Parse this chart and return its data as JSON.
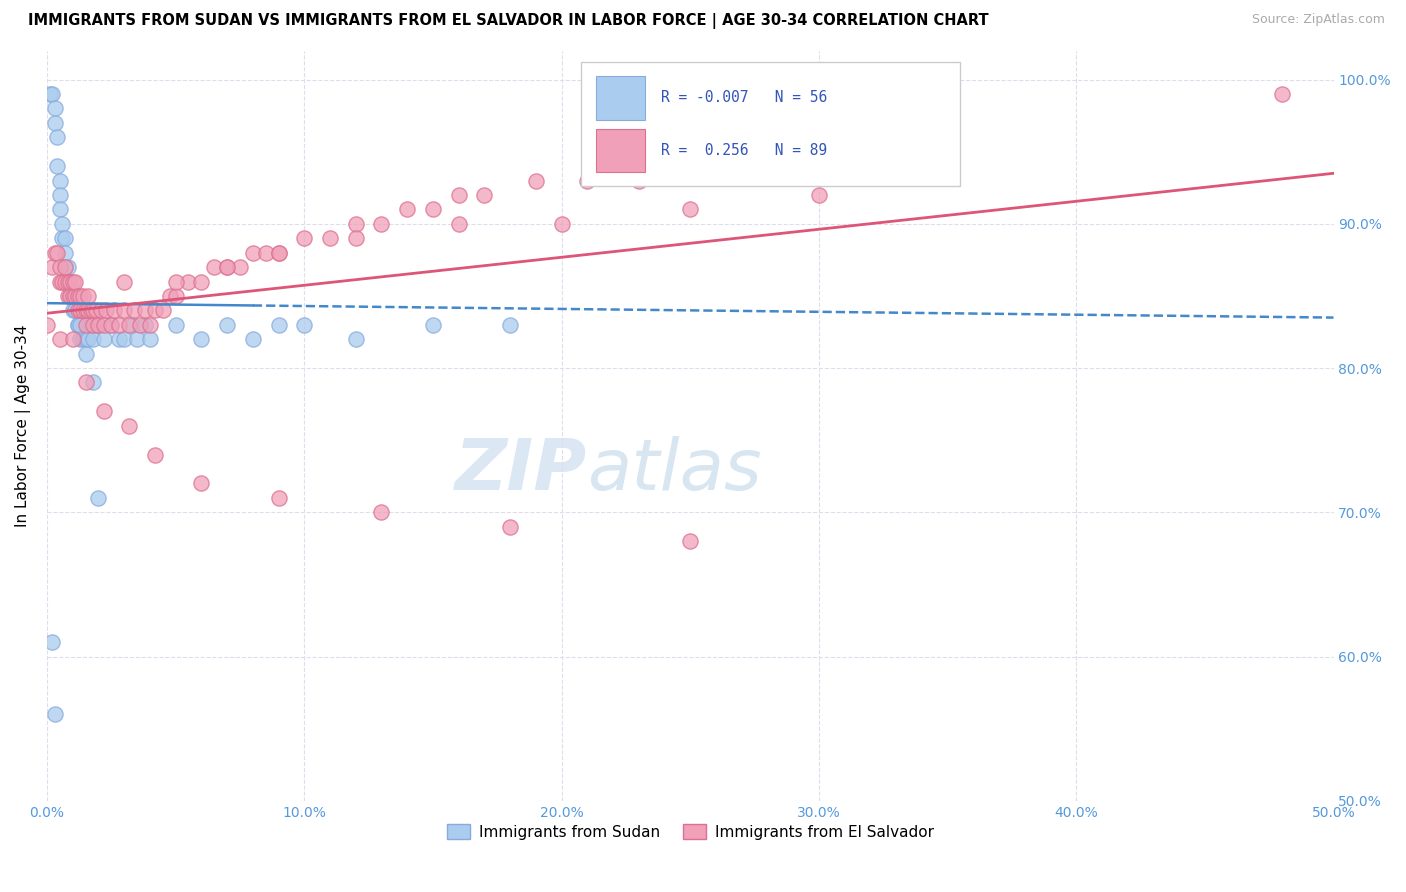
{
  "title": "IMMIGRANTS FROM SUDAN VS IMMIGRANTS FROM EL SALVADOR IN LABOR FORCE | AGE 30-34 CORRELATION CHART",
  "source": "Source: ZipAtlas.com",
  "ylabel": "In Labor Force | Age 30-34",
  "watermark_zip": "ZIP",
  "watermark_atlas": "atlas",
  "color_sudan": "#aaccee",
  "color_sudan_edge": "#88aadd",
  "color_salvador": "#f0a0b8",
  "color_salvador_edge": "#dd7090",
  "color_trendline_sudan": "#4488cc",
  "color_trendline_salvador": "#dd5577",
  "legend_text_color": "#3355bb",
  "axis_tick_color": "#5599dd",
  "grid_color": "#ddddee",
  "sudan_x": [
    0.001,
    0.002,
    0.003,
    0.003,
    0.004,
    0.004,
    0.005,
    0.005,
    0.005,
    0.006,
    0.006,
    0.007,
    0.007,
    0.007,
    0.008,
    0.008,
    0.008,
    0.009,
    0.009,
    0.01,
    0.01,
    0.011,
    0.011,
    0.012,
    0.012,
    0.013,
    0.013,
    0.014,
    0.015,
    0.015,
    0.016,
    0.017,
    0.018,
    0.019,
    0.02,
    0.022,
    0.025,
    0.028,
    0.03,
    0.033,
    0.035,
    0.038,
    0.04,
    0.05,
    0.06,
    0.07,
    0.08,
    0.09,
    0.1,
    0.12,
    0.15,
    0.18,
    0.002,
    0.003,
    0.018,
    0.02
  ],
  "sudan_y": [
    0.99,
    0.99,
    0.98,
    0.97,
    0.96,
    0.94,
    0.93,
    0.92,
    0.91,
    0.9,
    0.89,
    0.89,
    0.88,
    0.87,
    0.87,
    0.86,
    0.86,
    0.85,
    0.85,
    0.85,
    0.84,
    0.84,
    0.84,
    0.83,
    0.83,
    0.83,
    0.82,
    0.82,
    0.82,
    0.81,
    0.82,
    0.83,
    0.82,
    0.83,
    0.83,
    0.82,
    0.83,
    0.82,
    0.82,
    0.83,
    0.82,
    0.83,
    0.82,
    0.83,
    0.82,
    0.83,
    0.82,
    0.83,
    0.83,
    0.82,
    0.83,
    0.83,
    0.61,
    0.56,
    0.79,
    0.71
  ],
  "salvador_x": [
    0.002,
    0.003,
    0.004,
    0.005,
    0.005,
    0.006,
    0.007,
    0.007,
    0.008,
    0.008,
    0.009,
    0.009,
    0.01,
    0.01,
    0.011,
    0.011,
    0.012,
    0.012,
    0.013,
    0.013,
    0.014,
    0.014,
    0.015,
    0.015,
    0.016,
    0.016,
    0.017,
    0.018,
    0.018,
    0.019,
    0.02,
    0.021,
    0.022,
    0.023,
    0.025,
    0.026,
    0.028,
    0.03,
    0.032,
    0.034,
    0.036,
    0.038,
    0.04,
    0.042,
    0.045,
    0.048,
    0.05,
    0.055,
    0.06,
    0.065,
    0.07,
    0.075,
    0.08,
    0.085,
    0.09,
    0.1,
    0.11,
    0.12,
    0.13,
    0.14,
    0.15,
    0.16,
    0.17,
    0.19,
    0.21,
    0.23,
    0.26,
    0.03,
    0.05,
    0.07,
    0.09,
    0.12,
    0.16,
    0.2,
    0.25,
    0.3,
    0.0,
    0.005,
    0.01,
    0.015,
    0.022,
    0.032,
    0.042,
    0.06,
    0.09,
    0.13,
    0.18,
    0.25,
    0.48
  ],
  "salvador_y": [
    0.87,
    0.88,
    0.88,
    0.86,
    0.87,
    0.86,
    0.86,
    0.87,
    0.85,
    0.86,
    0.86,
    0.85,
    0.85,
    0.86,
    0.85,
    0.86,
    0.84,
    0.85,
    0.84,
    0.85,
    0.84,
    0.85,
    0.83,
    0.84,
    0.84,
    0.85,
    0.84,
    0.83,
    0.84,
    0.84,
    0.83,
    0.84,
    0.83,
    0.84,
    0.83,
    0.84,
    0.83,
    0.84,
    0.83,
    0.84,
    0.83,
    0.84,
    0.83,
    0.84,
    0.84,
    0.85,
    0.85,
    0.86,
    0.86,
    0.87,
    0.87,
    0.87,
    0.88,
    0.88,
    0.88,
    0.89,
    0.89,
    0.9,
    0.9,
    0.91,
    0.91,
    0.92,
    0.92,
    0.93,
    0.93,
    0.93,
    0.94,
    0.86,
    0.86,
    0.87,
    0.88,
    0.89,
    0.9,
    0.9,
    0.91,
    0.92,
    0.83,
    0.82,
    0.82,
    0.79,
    0.77,
    0.76,
    0.74,
    0.72,
    0.71,
    0.7,
    0.69,
    0.68,
    0.99
  ],
  "xlim": [
    0.0,
    0.5
  ],
  "ylim": [
    0.5,
    1.02
  ],
  "xticks": [
    0.0,
    0.1,
    0.2,
    0.3,
    0.4,
    0.5
  ],
  "yticks": [
    0.5,
    0.6,
    0.7,
    0.8,
    0.9,
    1.0
  ],
  "xtick_labels": [
    "0.0%",
    "10.0%",
    "20.0%",
    "30.0%",
    "40.0%",
    "50.0%"
  ],
  "ytick_labels": [
    "50.0%",
    "60.0%",
    "70.0%",
    "80.0%",
    "90.0%",
    "100.0%"
  ]
}
